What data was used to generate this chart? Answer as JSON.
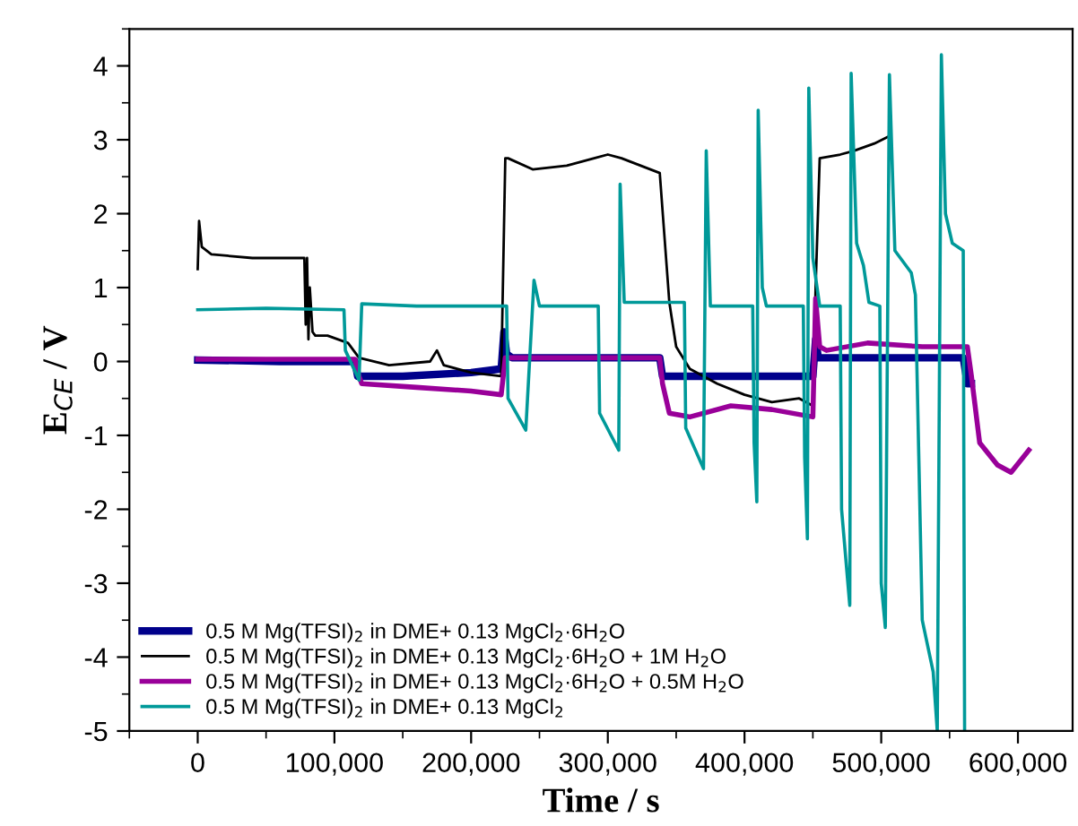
{
  "chart_data": {
    "type": "line",
    "xlabel": "Time / s",
    "ylabel": "E$_{CE}$ / V",
    "xlim": [
      -50000,
      640000
    ],
    "ylim": [
      -5,
      4.5
    ],
    "xticks": [
      0,
      {
        "value": 100000,
        "label": "100,000"
      },
      {
        "value": 200000,
        "label": "200,000"
      },
      {
        "value": 300000,
        "label": "300,000"
      },
      {
        "value": 400000,
        "label": "400,000"
      },
      {
        "value": 500000,
        "label": "500,000"
      },
      {
        "value": 600000,
        "label": "600,000"
      }
    ],
    "yticks": [
      -5,
      -4,
      -3,
      -2,
      -1,
      0,
      1,
      2,
      3,
      4
    ],
    "grid": false,
    "legend": "bottom left",
    "marker": "none",
    "line_style": "solid",
    "series": [
      {
        "name": "0.5 M Mg(TFSI)$_{2}$ in DME+ 0.13 MgCl$_{2}$·6H$_{2}$O",
        "color": "#00008b",
        "x": [
          0,
          60000,
          115000,
          117000,
          150000,
          200000,
          222000,
          224000,
          226000,
          230000,
          280000,
          338000,
          340000,
          380000,
          420000,
          450000,
          452000,
          454000,
          500000,
          560000,
          563000,
          566000
        ],
        "values": [
          0.02,
          0.0,
          0.0,
          -0.2,
          -0.2,
          -0.15,
          -0.1,
          0.4,
          0.1,
          0.05,
          0.05,
          0.05,
          -0.2,
          -0.2,
          -0.2,
          -0.2,
          0.3,
          0.05,
          0.05,
          0.05,
          -0.3,
          -0.3
        ]
      },
      {
        "name": "0.5 M Mg(TFSI)$_{2}$ in DME+ 0.13 MgCl$_{2}$·6H$_{2}$O + 1M H$_{2}$O",
        "color": "#000000",
        "x": [
          0,
          1000,
          3000,
          10000,
          40000,
          78000,
          79000,
          80000,
          81000,
          82000,
          84000,
          86000,
          95000,
          110000,
          118000,
          140000,
          170000,
          175000,
          180000,
          200000,
          222000,
          225000,
          227000,
          245000,
          270000,
          290000,
          300000,
          310000,
          338000,
          341000,
          345000,
          350000,
          360000,
          380000,
          400000,
          420000,
          440000,
          450000,
          452000,
          455000,
          470000,
          480000,
          495000,
          506000
        ],
        "values": [
          1.25,
          1.9,
          1.55,
          1.45,
          1.4,
          1.4,
          0.5,
          1.4,
          0.3,
          1.0,
          0.4,
          0.35,
          0.35,
          0.25,
          0.05,
          -0.05,
          0.0,
          0.15,
          -0.05,
          -0.15,
          -0.2,
          2.75,
          2.75,
          2.6,
          2.65,
          2.75,
          2.8,
          2.75,
          2.55,
          1.8,
          0.8,
          0.2,
          -0.1,
          -0.3,
          -0.45,
          -0.55,
          -0.5,
          -0.6,
          1.0,
          2.75,
          2.8,
          2.85,
          2.95,
          3.05
        ]
      },
      {
        "name": "0.5 M Mg(TFSI)$_{2}$ in DME+ 0.13 MgCl$_{2}$·6H$_{2}$O + 0.5M H$_{2}$O",
        "color": "#990099",
        "x": [
          0,
          60000,
          115000,
          118000,
          120000,
          160000,
          200000,
          222000,
          225000,
          280000,
          338000,
          340000,
          345000,
          360000,
          390000,
          420000,
          450000,
          452000,
          455000,
          460000,
          490000,
          530000,
          563000,
          566000,
          572000,
          585000,
          595000,
          608000
        ],
        "values": [
          0.03,
          0.03,
          0.03,
          -0.2,
          -0.3,
          -0.35,
          -0.4,
          -0.45,
          0.05,
          0.05,
          0.05,
          -0.3,
          -0.7,
          -0.75,
          -0.6,
          -0.65,
          -0.75,
          0.85,
          0.2,
          0.15,
          0.25,
          0.2,
          0.2,
          -0.2,
          -1.1,
          -1.4,
          -1.5,
          -1.2
        ]
      },
      {
        "name": "0.5 M Mg(TFSI)$_{2}$ in DME+ 0.13 MgCl$_{2}$",
        "color": "#009999",
        "x": [
          0,
          50000,
          107000,
          108000,
          118000,
          120000,
          160000,
          226000,
          227000,
          240000,
          246000,
          250000,
          293000,
          294000,
          308000,
          309000,
          312000,
          356000,
          357000,
          370000,
          372000,
          375000,
          406000,
          407000,
          409000,
          410000,
          413000,
          416000,
          443000,
          444000,
          446000,
          447000,
          450000,
          455000,
          470000,
          471000,
          477000,
          478000,
          482000,
          487000,
          491000,
          499000,
          500000,
          503000,
          506000,
          510000,
          522000,
          525000,
          530000,
          538000,
          541000,
          544000,
          547000,
          552000,
          560000,
          561000
        ],
        "values": [
          0.7,
          0.72,
          0.7,
          0.15,
          -0.25,
          0.78,
          0.75,
          0.75,
          -0.5,
          -0.93,
          1.1,
          0.75,
          0.75,
          -0.7,
          -1.2,
          2.4,
          0.8,
          0.8,
          -0.9,
          -1.45,
          2.85,
          0.75,
          0.75,
          -1.1,
          -1.9,
          3.4,
          1.0,
          0.75,
          0.75,
          -1.3,
          -2.4,
          3.7,
          1.4,
          0.75,
          0.75,
          -2.0,
          -3.3,
          3.9,
          1.6,
          1.3,
          0.8,
          0.75,
          -3.0,
          -3.6,
          3.88,
          1.5,
          1.2,
          0.9,
          -3.5,
          -4.2,
          -5.0,
          4.15,
          2.0,
          1.6,
          1.5,
          -5.0
        ]
      }
    ]
  }
}
